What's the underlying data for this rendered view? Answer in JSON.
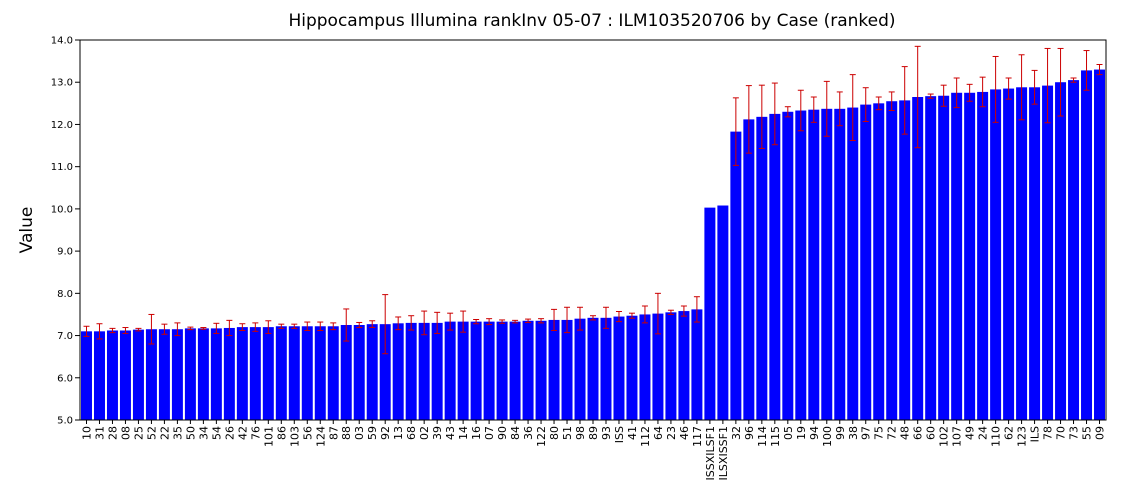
{
  "chart_data": {
    "type": "bar",
    "title": "Hippocampus Illumina rankInv 05-07 : ILM103520706 by Case (ranked)",
    "xlabel": "",
    "ylabel": "Value",
    "ylim": [
      5.0,
      14.0
    ],
    "yticks": [
      "5.0",
      "6.0",
      "7.0",
      "8.0",
      "9.0",
      "10.0",
      "11.0",
      "12.0",
      "13.0",
      "14.0"
    ],
    "bar_color": "#0000ff",
    "error_color": "#cc0000",
    "categories": [
      "10",
      "31",
      "28",
      "08",
      "25",
      "52",
      "22",
      "35",
      "50",
      "34",
      "54",
      "26",
      "42",
      "76",
      "101",
      "86",
      "103",
      "56",
      "124",
      "87",
      "88",
      "03",
      "59",
      "92",
      "13",
      "68",
      "02",
      "39",
      "43",
      "14",
      "16",
      "07",
      "90",
      "84",
      "36",
      "122",
      "80",
      "51",
      "98",
      "89",
      "93",
      "ISS",
      "41",
      "112",
      "64",
      "23",
      "46",
      "117",
      "ISSXILSF1",
      "ILSXISSF1",
      "32",
      "96",
      "114",
      "115",
      "05",
      "19",
      "94",
      "100",
      "99",
      "38",
      "97",
      "75",
      "72",
      "48",
      "66",
      "60",
      "102",
      "107",
      "49",
      "24",
      "110",
      "62",
      "123",
      "ILS",
      "78",
      "70",
      "73",
      "55",
      "09"
    ],
    "values": [
      7.1,
      7.1,
      7.12,
      7.12,
      7.14,
      7.15,
      7.15,
      7.15,
      7.17,
      7.17,
      7.17,
      7.18,
      7.2,
      7.2,
      7.2,
      7.22,
      7.22,
      7.22,
      7.22,
      7.22,
      7.25,
      7.25,
      7.27,
      7.27,
      7.29,
      7.3,
      7.3,
      7.3,
      7.33,
      7.33,
      7.33,
      7.33,
      7.33,
      7.33,
      7.35,
      7.35,
      7.37,
      7.37,
      7.4,
      7.42,
      7.42,
      7.45,
      7.47,
      7.5,
      7.52,
      7.55,
      7.58,
      7.62,
      10.03,
      10.08,
      11.83,
      12.12,
      12.18,
      12.25,
      12.3,
      12.33,
      12.35,
      12.37,
      12.37,
      12.4,
      12.47,
      12.5,
      12.55,
      12.57,
      12.65,
      12.67,
      12.68,
      12.75,
      12.75,
      12.77,
      12.83,
      12.85,
      12.88,
      12.88,
      12.92,
      13.0,
      13.05,
      13.28,
      13.3
    ],
    "errors": [
      0.12,
      0.18,
      0.05,
      0.07,
      0.03,
      0.35,
      0.12,
      0.15,
      0.03,
      0.02,
      0.12,
      0.18,
      0.08,
      0.1,
      0.15,
      0.05,
      0.05,
      0.1,
      0.1,
      0.08,
      0.38,
      0.06,
      0.08,
      0.7,
      0.15,
      0.17,
      0.28,
      0.25,
      0.2,
      0.25,
      0.05,
      0.07,
      0.04,
      0.03,
      0.04,
      0.05,
      0.25,
      0.3,
      0.27,
      0.05,
      0.25,
      0.12,
      0.06,
      0.2,
      0.48,
      0.05,
      0.12,
      0.3,
      0,
      0,
      0.8,
      0.8,
      0.75,
      0.73,
      0.12,
      0.48,
      0.3,
      0.65,
      0.4,
      0.78,
      0.4,
      0.15,
      0.22,
      0.8,
      1.2,
      0.05,
      0.25,
      0.35,
      0.2,
      0.35,
      0.78,
      0.25,
      0.77,
      0.4,
      0.88,
      0.8,
      0.05,
      0.47,
      0.12
    ]
  }
}
